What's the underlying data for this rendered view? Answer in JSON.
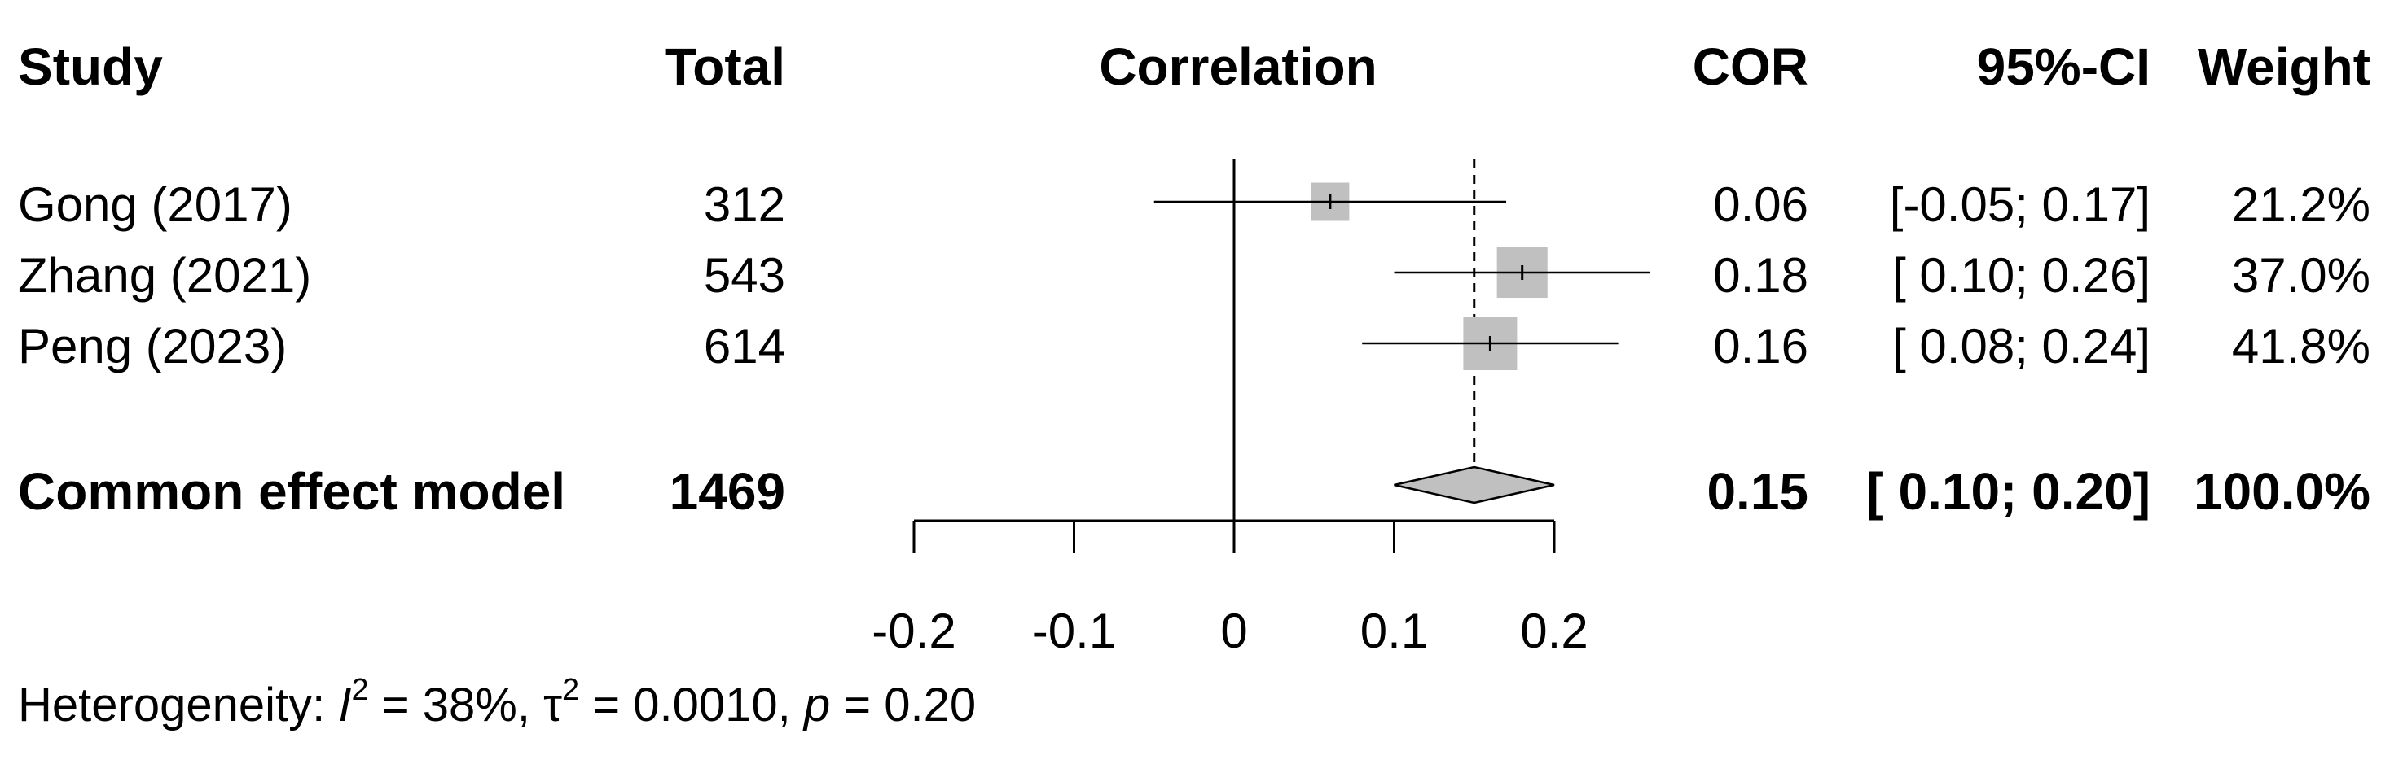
{
  "headers": {
    "study": "Study",
    "total": "Total",
    "correlation": "Correlation",
    "cor": "COR",
    "ci": "95%-CI",
    "weight": "Weight"
  },
  "studies": [
    {
      "name": "Gong (2017)",
      "total": "312",
      "cor": "0.06",
      "ci": "[-0.05; 0.17]",
      "weight": "21.2%"
    },
    {
      "name": "Zhang (2021)",
      "total": "543",
      "cor": "0.18",
      "ci": "[ 0.10; 0.26]",
      "weight": "37.0%"
    },
    {
      "name": "Peng (2023)",
      "total": "614",
      "cor": "0.16",
      "ci": "[ 0.08; 0.24]",
      "weight": "41.8%"
    }
  ],
  "summary": {
    "name": "Common effect model",
    "total": "1469",
    "cor": "0.15",
    "ci": "[ 0.10; 0.20]",
    "weight": "100.0%"
  },
  "heterogeneity": {
    "label": "Heterogeneity:",
    "i2_symbol": "I",
    "i2_value": "38%",
    "tau_symbol": "τ",
    "tau2_value": "0.0010",
    "p_symbol": "p",
    "p_value": "0.20"
  },
  "colors": {
    "box": "#c0c0c0",
    "diamond": "#c0c0c0",
    "line": "#000000"
  },
  "chart_data": {
    "type": "forest",
    "title": "",
    "xlabel": "Correlation",
    "xlim": [
      -0.2,
      0.2
    ],
    "xticks": [
      -0.2,
      -0.1,
      0,
      0.1,
      0.2
    ],
    "tick_labels": [
      "-0.2",
      "-0.1",
      "0",
      "0.1",
      "0.2"
    ],
    "null_line": 0,
    "studies": [
      {
        "name": "Gong (2017)",
        "estimate": 0.06,
        "lower": -0.05,
        "upper": 0.17,
        "weight": 21.2
      },
      {
        "name": "Zhang (2021)",
        "estimate": 0.18,
        "lower": 0.1,
        "upper": 0.26,
        "weight": 37.0
      },
      {
        "name": "Peng (2023)",
        "estimate": 0.16,
        "lower": 0.08,
        "upper": 0.24,
        "weight": 41.8
      }
    ],
    "pooled": {
      "name": "Common effect model",
      "estimate": 0.15,
      "lower": 0.1,
      "upper": 0.2,
      "weight": 100.0
    }
  }
}
